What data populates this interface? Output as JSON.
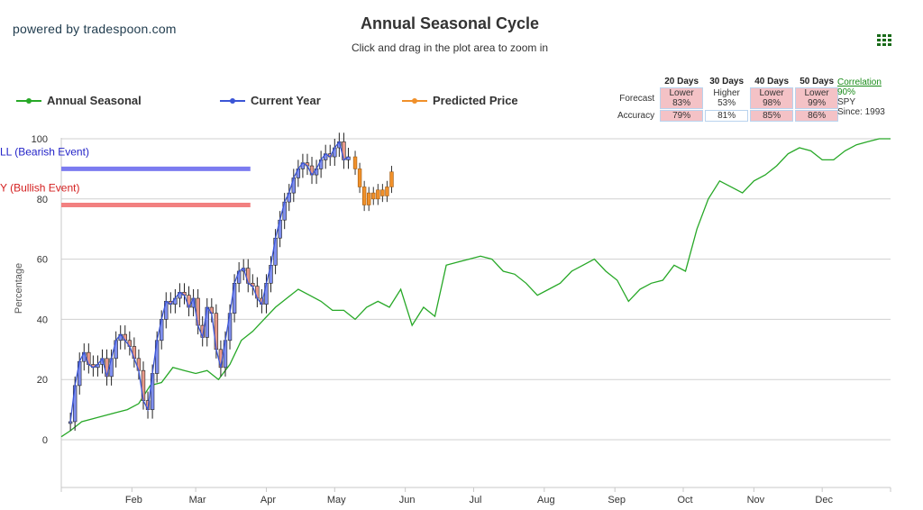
{
  "header": {
    "brand": "powered by tradespoon.com",
    "title": "Annual Seasonal Cycle",
    "subtitle": "Click and drag in the plot area to zoom in"
  },
  "legend": [
    {
      "label": "Annual Seasonal",
      "color": "#27a827"
    },
    {
      "label": "Current Year",
      "color": "#3b55d6"
    },
    {
      "label": "Predicted Price",
      "color": "#f0902a"
    }
  ],
  "forecast_table": {
    "headers": [
      "20 Days",
      "30 Days",
      "40 Days",
      "50 Days"
    ],
    "forecast_label": "Forecast",
    "accuracy_label": "Accuracy",
    "forecast": [
      {
        "direction": "Lower",
        "pct": "83%",
        "highlight": true
      },
      {
        "direction": "Higher",
        "pct": "53%",
        "highlight": false
      },
      {
        "direction": "Lower",
        "pct": "98%",
        "highlight": true
      },
      {
        "direction": "Lower",
        "pct": "99%",
        "highlight": true
      }
    ],
    "accuracy": [
      {
        "pct": "79%",
        "highlight": true
      },
      {
        "pct": "81%",
        "highlight": false
      },
      {
        "pct": "85%",
        "highlight": true
      },
      {
        "pct": "86%",
        "highlight": true
      }
    ]
  },
  "correlation": {
    "label": "Correlation",
    "value": "90%",
    "symbol": "SPY",
    "since": "Since: 1993"
  },
  "chart_data": {
    "type": "line",
    "ylabel": "Percentage",
    "ylim": [
      -15,
      100
    ],
    "yticks": [
      0,
      20,
      40,
      60,
      80,
      100
    ],
    "xticks": [
      "Feb",
      "Mar",
      "Apr",
      "May",
      "Jun",
      "Jul",
      "Aug",
      "Sep",
      "Oct",
      "Nov",
      "Dec"
    ],
    "grid": true,
    "legend_position": "top",
    "bands": [
      {
        "label": "LL (Bearish Event)",
        "value": 90,
        "x_start": "Jan 1",
        "x_end": "Mar 25",
        "color": "#7b7bf0",
        "text_color": "#2323c8"
      },
      {
        "label": "Y (Bullish Event)",
        "value": 78,
        "x_start": "Jan 1",
        "x_end": "Mar 25",
        "color": "#f28080",
        "text_color": "#d42020"
      }
    ],
    "series": [
      {
        "name": "Annual Seasonal",
        "color": "#27a827",
        "x_day": [
          1,
          5,
          10,
          15,
          20,
          25,
          30,
          35,
          40,
          45,
          50,
          55,
          60,
          65,
          70,
          75,
          80,
          85,
          90,
          95,
          100,
          105,
          110,
          115,
          120,
          125,
          130,
          135,
          140,
          145,
          150,
          155,
          160,
          165,
          170,
          175,
          180,
          185,
          190,
          195,
          200,
          205,
          210,
          215,
          220,
          225,
          230,
          235,
          240,
          245,
          250,
          255,
          260,
          265,
          270,
          275,
          280,
          285,
          290,
          295,
          300,
          305,
          310,
          315,
          320,
          325,
          330,
          335,
          340,
          345,
          350,
          355,
          360,
          365
        ],
        "values": [
          1,
          3,
          6,
          7,
          8,
          9,
          10,
          12,
          18,
          19,
          24,
          23,
          22,
          23,
          20,
          25,
          33,
          36,
          40,
          44,
          47,
          50,
          48,
          46,
          43,
          43,
          40,
          44,
          46,
          44,
          50,
          38,
          44,
          41,
          58,
          59,
          60,
          61,
          60,
          56,
          55,
          52,
          48,
          50,
          52,
          56,
          58,
          60,
          56,
          53,
          46,
          50,
          52,
          53,
          58,
          56,
          70,
          80,
          86,
          84,
          82,
          86,
          88,
          91,
          95,
          97,
          96,
          93,
          93,
          96,
          98,
          99,
          100,
          100
        ]
      },
      {
        "name": "Current Year",
        "color": "#3b55d6",
        "x_day": [
          5,
          7,
          9,
          11,
          13,
          15,
          17,
          19,
          21,
          23,
          25,
          27,
          29,
          31,
          33,
          35,
          37,
          39,
          41,
          43,
          45,
          47,
          49,
          51,
          53,
          55,
          57,
          59,
          61,
          63,
          65,
          67,
          69,
          71,
          73,
          75,
          77,
          79,
          81,
          83,
          85,
          87,
          89,
          91,
          93,
          95,
          97,
          99,
          101,
          103,
          105,
          107,
          109,
          111,
          113,
          115,
          117,
          119,
          121,
          123,
          125,
          127
        ],
        "values": [
          6,
          18,
          26,
          29,
          25,
          24,
          25,
          27,
          21,
          27,
          33,
          35,
          33,
          31,
          27,
          23,
          13,
          10,
          22,
          33,
          40,
          46,
          45,
          47,
          49,
          48,
          44,
          47,
          38,
          34,
          44,
          42,
          30,
          24,
          33,
          42,
          52,
          56,
          57,
          52,
          51,
          47,
          45,
          52,
          58,
          67,
          73,
          79,
          82,
          87,
          90,
          92,
          91,
          88,
          90,
          93,
          95,
          94,
          97,
          99,
          93,
          94
        ]
      },
      {
        "name": "Predicted Price",
        "color": "#f0902a",
        "x_day": [
          130,
          132,
          134,
          136,
          138,
          140,
          142,
          144,
          146
        ],
        "values": [
          90,
          84,
          78,
          82,
          80,
          83,
          81,
          84,
          89
        ]
      }
    ]
  }
}
